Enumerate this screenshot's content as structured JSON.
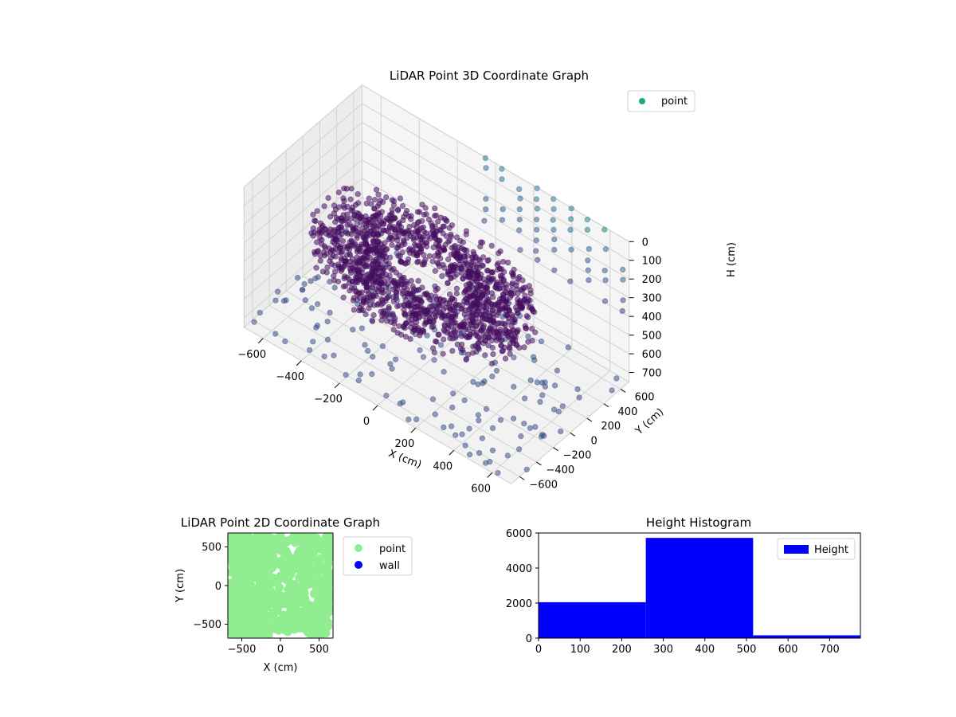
{
  "chart_data": [
    {
      "type": "scatter",
      "title": "LiDAR Point 3D Coordinate Graph",
      "xlabel": "X (cm)",
      "ylabel": "Y (cm)",
      "zlabel": "H (cm)",
      "xlim": [
        -700,
        700
      ],
      "ylim": [
        -700,
        700
      ],
      "zlim": [
        750,
        0
      ],
      "x_ticks": [
        "−600",
        "−400",
        "−200",
        "0",
        "200",
        "400",
        "600"
      ],
      "y_ticks": [
        "−600",
        "−400",
        "−200",
        "0",
        "200",
        "400",
        "600"
      ],
      "z_ticks": [
        "0",
        "100",
        "200",
        "300",
        "400",
        "500",
        "600",
        "700"
      ],
      "colormap": "viridis",
      "grid": true,
      "legend": {
        "position": "top-right",
        "entries": [
          {
            "name": "point",
            "color": "#21a685"
          }
        ]
      },
      "series": [
        {
          "name": "point",
          "structure": "dense ring of points at H 250-450 cm around the origin, sparse ground points near H 700 cm, and a sparse grid of points at H 0-400 cm toward the back edge"
        }
      ]
    },
    {
      "type": "scatter",
      "title": "LiDAR Point 2D Coordinate Graph",
      "xlabel": "X (cm)",
      "ylabel": "Y (cm)",
      "xlim": [
        -680,
        680
      ],
      "ylim": [
        -680,
        680
      ],
      "x_ticks": [
        "−500",
        "0",
        "500"
      ],
      "y_ticks": [
        "−500",
        "0",
        "500"
      ],
      "legend": {
        "position": "outside-right",
        "entries": [
          {
            "name": "point",
            "color": "#90ee90"
          },
          {
            "name": "wall",
            "color": "#0000ff"
          }
        ]
      }
    },
    {
      "type": "bar",
      "title": "Height Histogram",
      "bins": [
        {
          "from": 0,
          "to": 258,
          "count": 2050
        },
        {
          "from": 258,
          "to": 516,
          "count": 5720
        },
        {
          "from": 516,
          "to": 774,
          "count": 160
        }
      ],
      "xlim": [
        0,
        774
      ],
      "ylim": [
        0,
        6000
      ],
      "x_ticks": [
        0,
        100,
        200,
        300,
        400,
        500,
        600,
        700
      ],
      "y_ticks": [
        0,
        2000,
        4000,
        6000
      ],
      "color": "#0000ff",
      "legend": {
        "position": "top-right",
        "entries": [
          {
            "name": "Height",
            "color": "#0000ff"
          }
        ]
      }
    }
  ]
}
